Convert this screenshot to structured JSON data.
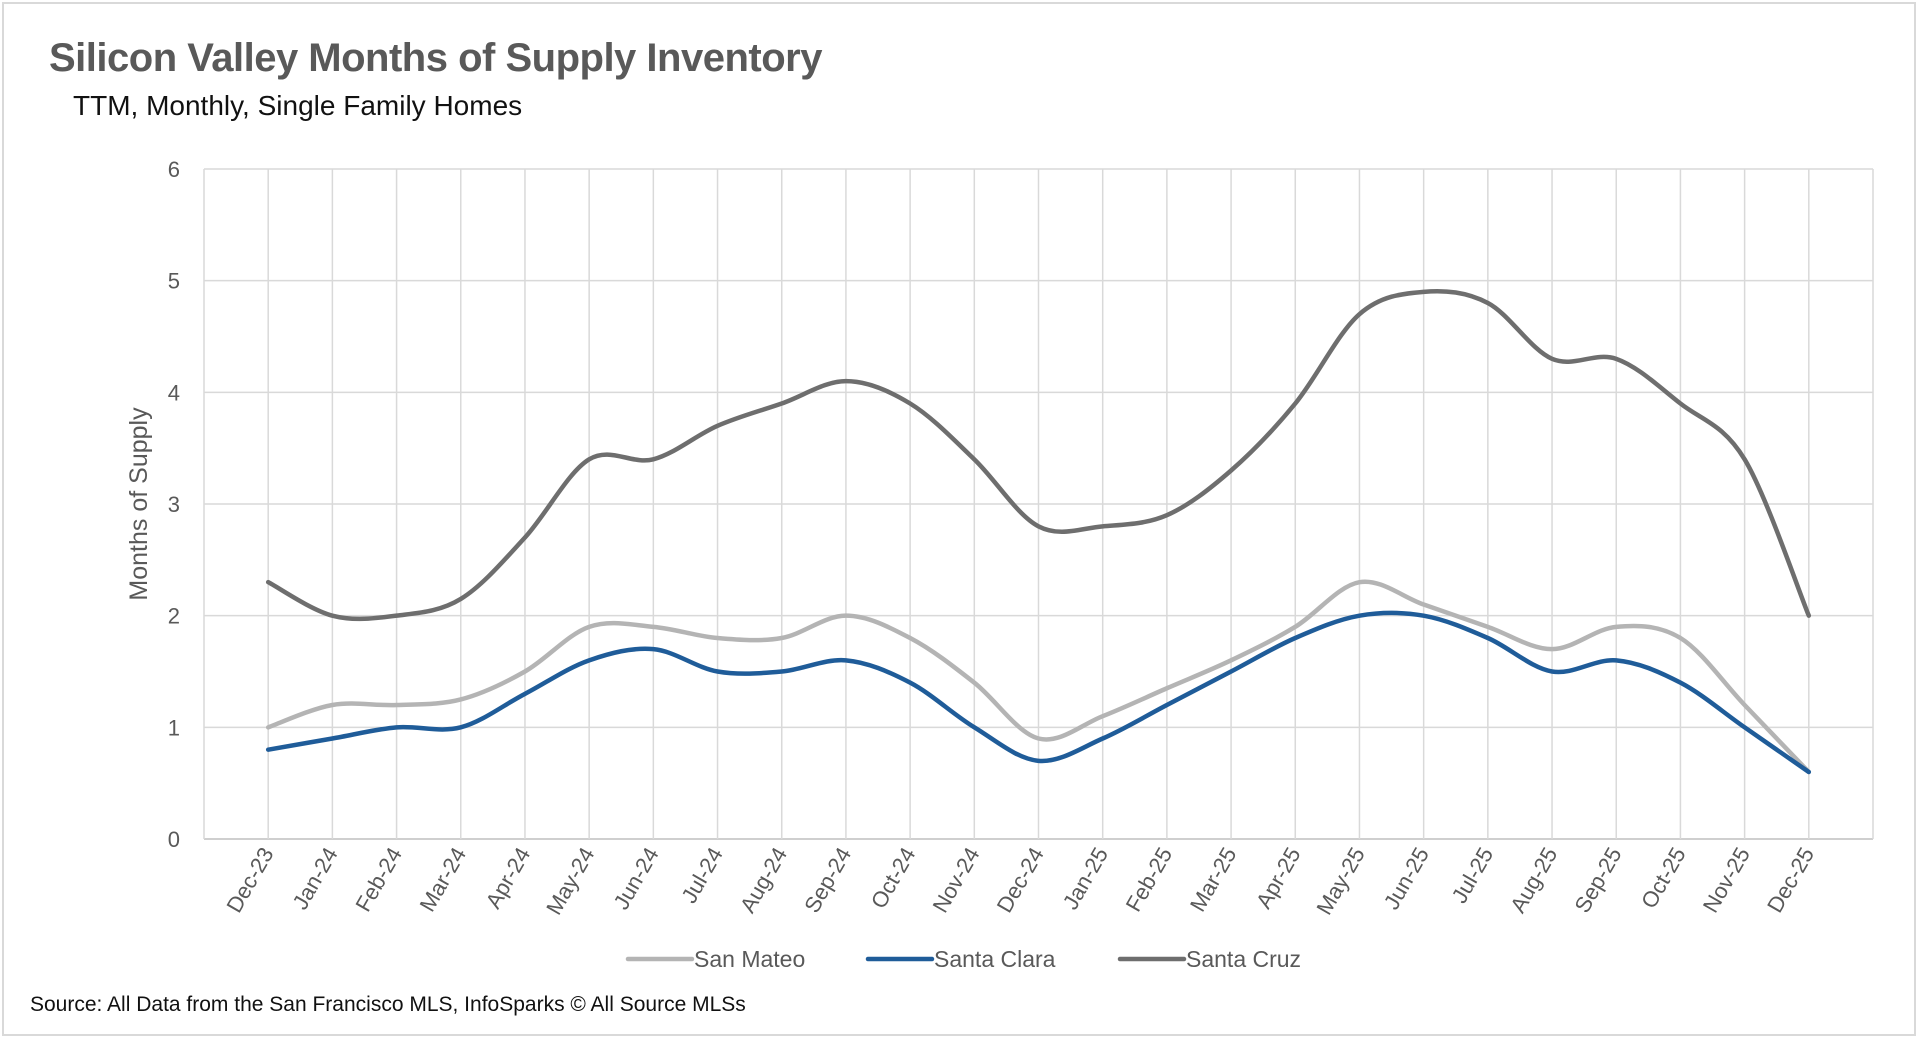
{
  "chart_data": {
    "type": "line",
    "title": "Silicon Valley Months of Supply Inventory",
    "subtitle": "TTM, Monthly, Single Family Homes",
    "xlabel": "",
    "ylabel": "Months of Supply",
    "ylim": [
      0,
      6
    ],
    "yticks": [
      "0",
      "1",
      "2",
      "3",
      "4",
      "5",
      "6"
    ],
    "grid": true,
    "legend": "bottom",
    "smooth": true,
    "categories": [
      "Dec-23",
      "Jan-24",
      "Feb-24",
      "Mar-24",
      "Apr-24",
      "May-24",
      "Jun-24",
      "Jul-24",
      "Aug-24",
      "Sep-24",
      "Oct-24",
      "Nov-24",
      "Dec-24",
      "Jan-25",
      "Feb-25",
      "Mar-25",
      "Apr-25",
      "May-25",
      "Jun-25",
      "Jul-25",
      "Aug-25",
      "Sep-25",
      "Oct-25",
      "Nov-25",
      "Dec-25"
    ],
    "series": [
      {
        "name": "San Mateo",
        "color": "#b4b4b4",
        "values": [
          1.0,
          1.2,
          1.2,
          1.25,
          1.5,
          1.9,
          1.9,
          1.8,
          1.8,
          2.0,
          1.8,
          1.4,
          0.9,
          1.1,
          1.35,
          1.6,
          1.9,
          2.3,
          2.1,
          1.9,
          1.7,
          1.9,
          1.8,
          1.2,
          0.6
        ]
      },
      {
        "name": "Santa Clara",
        "color": "#1f5c99",
        "values": [
          0.8,
          0.9,
          1.0,
          1.0,
          1.3,
          1.6,
          1.7,
          1.5,
          1.5,
          1.6,
          1.4,
          1.0,
          0.7,
          0.9,
          1.2,
          1.5,
          1.8,
          2.0,
          2.0,
          1.8,
          1.5,
          1.6,
          1.4,
          1.0,
          0.6
        ]
      },
      {
        "name": "Santa Cruz",
        "color": "#6e6e6e",
        "values": [
          2.3,
          2.0,
          2.0,
          2.15,
          2.7,
          3.4,
          3.4,
          3.7,
          3.9,
          4.1,
          3.9,
          3.4,
          2.8,
          2.8,
          2.9,
          3.3,
          3.9,
          4.7,
          4.9,
          4.8,
          4.3,
          4.3,
          3.9,
          3.4,
          2.0
        ]
      }
    ]
  },
  "source": "Source: All Data from the San Francisco MLS, InfoSparks © All Source MLSs"
}
